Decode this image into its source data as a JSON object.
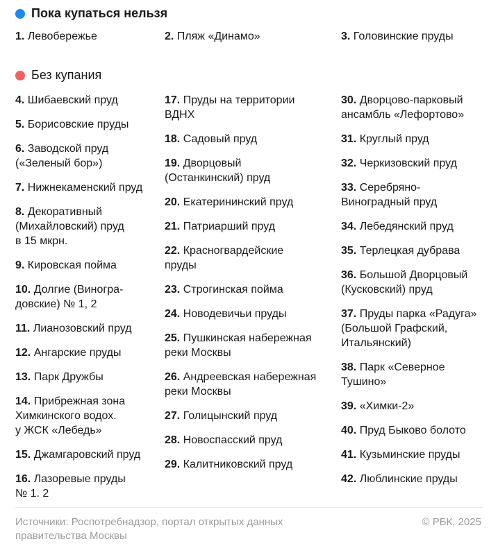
{
  "sections": {
    "closed": {
      "title": "Пока купаться нельзя",
      "color": "#1e88f0",
      "items": [
        {
          "num": "1.",
          "text": "Левобережье"
        },
        {
          "num": "2.",
          "text": "Пляж «Динамо»"
        },
        {
          "num": "3.",
          "text": "Головинские пруды"
        }
      ]
    },
    "no_swimming": {
      "title": "Без купания",
      "color": "#f06060",
      "columns": [
        [
          {
            "num": "4.",
            "text": "Шибаевский пруд"
          },
          {
            "num": "5.",
            "text": "Борисовские пруды"
          },
          {
            "num": "6.",
            "text": "Заводской пруд\n(«Зеленый бор»)"
          },
          {
            "num": "7.",
            "text": "Нижнекаменский пруд"
          },
          {
            "num": "8.",
            "text": "Декоративный\n(Михайловский) пруд\nв 15 мкрн."
          },
          {
            "num": "9.",
            "text": "Кировская пойма"
          },
          {
            "num": "10.",
            "text": "Долгие (Виногра-\nдовские) № 1, 2"
          },
          {
            "num": "11.",
            "text": "Лианозовский пруд"
          },
          {
            "num": "12.",
            "text": "Ангарские пруды"
          },
          {
            "num": "13.",
            "text": "Парк Дружбы"
          },
          {
            "num": "14.",
            "text": "Прибрежная зона\nХимкинского водох.\nу ЖСК «Лебедь»"
          },
          {
            "num": "15.",
            "text": "Джамгаровский пруд"
          },
          {
            "num": "16.",
            "text": "Лазоревые пруды\n№ 1. 2"
          }
        ],
        [
          {
            "num": "17.",
            "text": "Пруды на территории\nВДНХ"
          },
          {
            "num": "18.",
            "text": "Садовый пруд"
          },
          {
            "num": "19.",
            "text": "Дворцовый\n(Останкинский) пруд"
          },
          {
            "num": "20.",
            "text": "Екатерининский пруд"
          },
          {
            "num": "21.",
            "text": "Патриарший пруд"
          },
          {
            "num": "22.",
            "text": "Красногвардейские\nпруды"
          },
          {
            "num": "23.",
            "text": "Строгинская пойма"
          },
          {
            "num": "24.",
            "text": "Новодевичьи пруды"
          },
          {
            "num": "25.",
            "text": "Пушкинская набережная\nреки Москвы"
          },
          {
            "num": "26.",
            "text": "Андреевская набережная\nреки Москвы"
          },
          {
            "num": "27.",
            "text": "Голицынский пруд"
          },
          {
            "num": "28.",
            "text": "Новоспасский пруд"
          },
          {
            "num": "29.",
            "text": "Калитниковский пруд"
          }
        ],
        [
          {
            "num": "30.",
            "text": "Дворцово-парковый\nансамбль «Лефортово»"
          },
          {
            "num": "31.",
            "text": "Круглый пруд"
          },
          {
            "num": "32.",
            "text": "Черкизовский пруд"
          },
          {
            "num": "33.",
            "text": "Серебряно-\nВиноградный пруд"
          },
          {
            "num": "34.",
            "text": "Лебедянский пруд"
          },
          {
            "num": "35.",
            "text": "Терлецкая дубрава"
          },
          {
            "num": "36.",
            "text": "Большой Дворцовый\n(Кусковский) пруд"
          },
          {
            "num": "37.",
            "text": "Пруды парка «Радуга»\n(Большой Графский,\nИтальянский)"
          },
          {
            "num": "38.",
            "text": "Парк «Северное\nТушино»"
          },
          {
            "num": "39.",
            "text": "«Химки-2»"
          },
          {
            "num": "40.",
            "text": "Пруд Быково болото"
          },
          {
            "num": "41.",
            "text": "Кузьминские пруды"
          },
          {
            "num": "42.",
            "text": "Люблинские пруды"
          }
        ]
      ]
    }
  },
  "footer": {
    "source": "Источники: Роспотребнадзор, портал открытых данных\nправительства Москвы",
    "copyright": "© РБК, 2025"
  }
}
